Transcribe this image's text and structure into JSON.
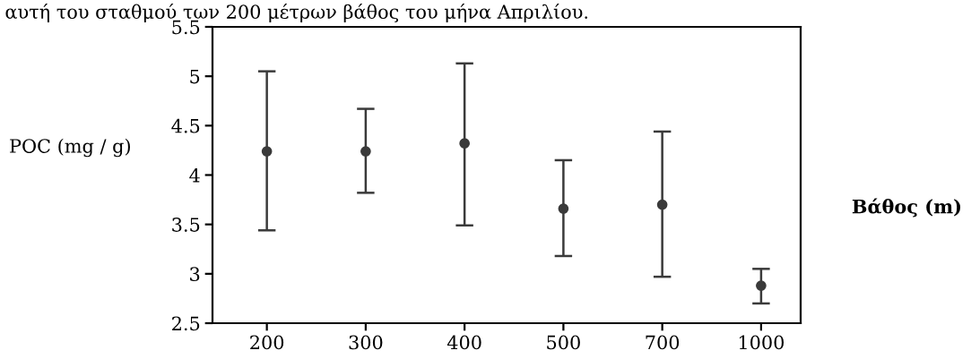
{
  "chart_data": {
    "type": "scatter",
    "annotations": [
      "αυτή του σταθμού των 200 μέτρων βάθος του μήνα Απριλίου."
    ],
    "xlabel": "Βάθος (m)",
    "ylabel": "POC (mg / g)",
    "categories": [
      "200",
      "300",
      "400",
      "500",
      "700",
      "1000"
    ],
    "series": [
      {
        "color": "#3a3a3a",
        "values": [
          4.24,
          4.24,
          4.32,
          3.66,
          3.7,
          2.88
        ],
        "errors": [
          [
            3.44,
            5.05
          ],
          [
            3.82,
            4.67
          ],
          [
            3.49,
            5.13
          ],
          [
            3.18,
            4.15
          ],
          [
            2.97,
            4.44
          ],
          [
            2.7,
            3.05
          ]
        ]
      }
    ],
    "ylim": [
      2.5,
      5.5
    ],
    "yticks": [
      2.5,
      3,
      3.5,
      4,
      4.5,
      5,
      5.5
    ],
    "marker": "circle",
    "grid": false,
    "legend": false
  }
}
